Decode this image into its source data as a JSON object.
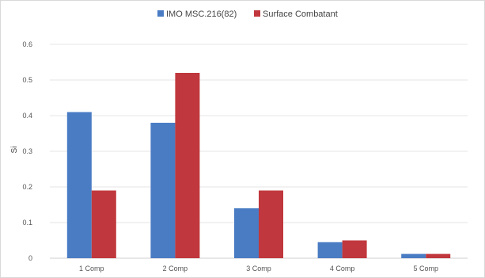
{
  "chart_data": {
    "type": "bar",
    "title": "",
    "xlabel": "",
    "ylabel": "Si",
    "categories": [
      "1 Comp",
      "2 Comp",
      "3 Comp",
      "4 Comp",
      "5 Comp"
    ],
    "series": [
      {
        "name": "IMO MSC.216(82)",
        "values": [
          0.41,
          0.38,
          0.14,
          0.045,
          0.012
        ],
        "color": "#4a7cc4"
      },
      {
        "name": "Surface Combatant",
        "values": [
          0.19,
          0.52,
          0.19,
          0.05,
          0.012
        ],
        "color": "#c0383d"
      }
    ],
    "ylim": [
      0,
      0.6
    ],
    "yticks": [
      "0",
      "0.1",
      "0.2",
      "0.3",
      "0.4",
      "0.5",
      "0.6"
    ],
    "grid": true,
    "legend_position": "top-center"
  }
}
